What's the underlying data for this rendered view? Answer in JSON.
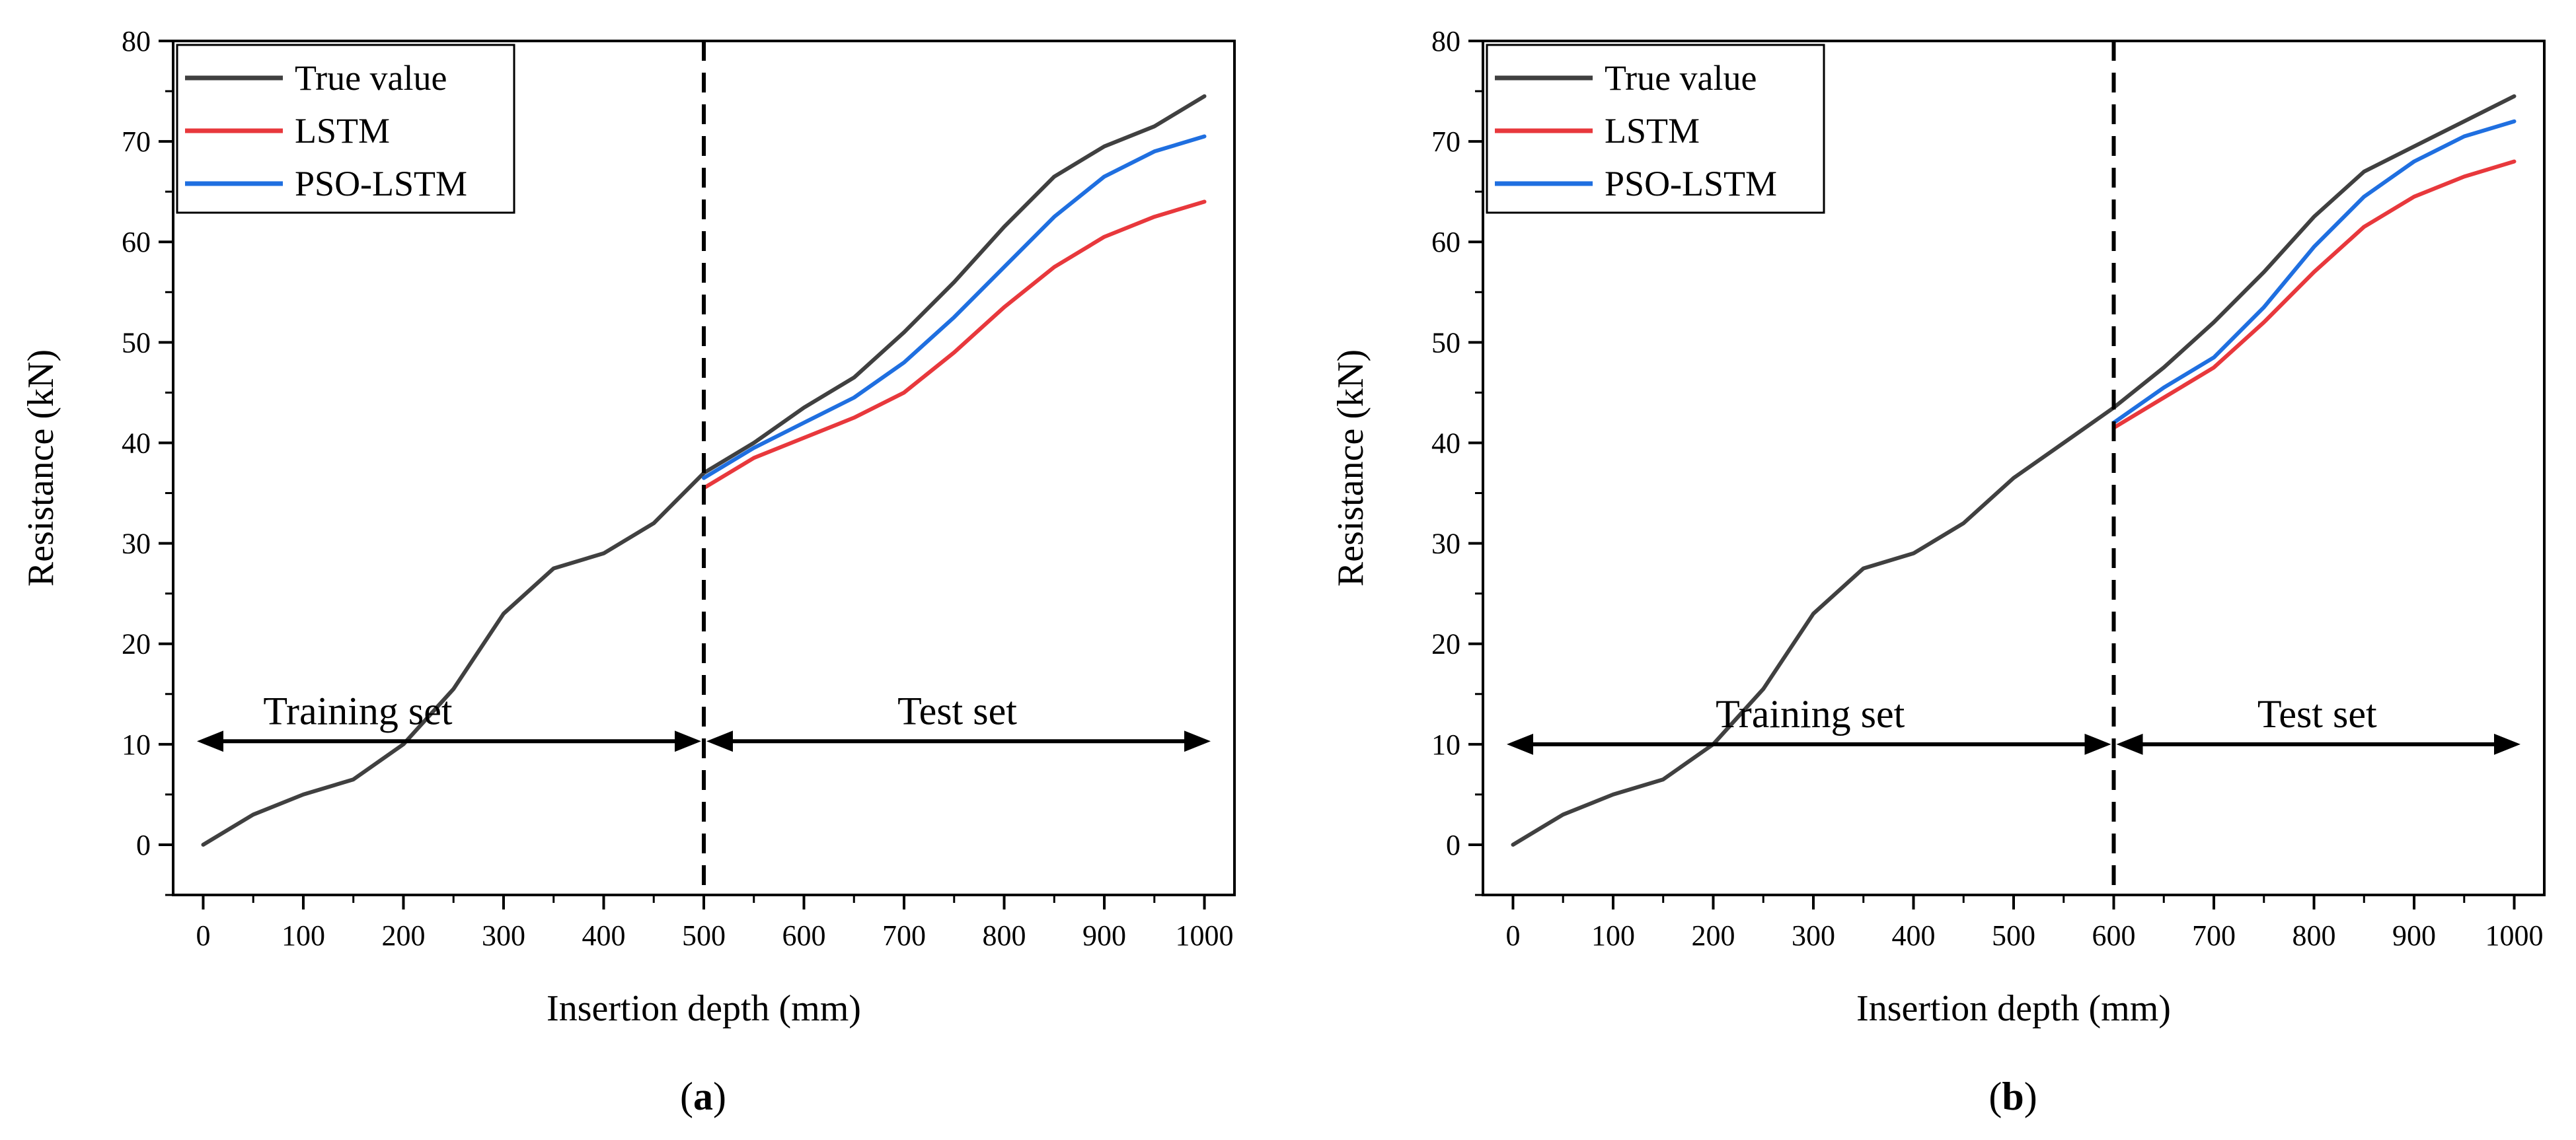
{
  "chart_data": [
    {
      "type": "line",
      "panel": "a",
      "panel_label": "a",
      "xlabel": "Insertion depth (mm)",
      "ylabel": "Resistance (kN)",
      "xlim": [
        -30,
        1030
      ],
      "ylim": [
        -5,
        80
      ],
      "xticks": [
        0,
        100,
        200,
        300,
        400,
        500,
        600,
        700,
        800,
        900,
        1000
      ],
      "yticks": [
        0,
        10,
        20,
        30,
        40,
        50,
        60,
        70,
        80
      ],
      "split": 500,
      "split_y": 10.3,
      "training_label": "Training set",
      "test_label": "Test set",
      "legend": [
        "True value",
        "LSTM",
        "PSO-LSTM"
      ],
      "legend_position": "top-left",
      "series": [
        {
          "name": "True value",
          "color": "#404040",
          "x": [
            0,
            50,
            100,
            150,
            200,
            250,
            300,
            350,
            400,
            450,
            500,
            550,
            600,
            650,
            700,
            750,
            800,
            850,
            900,
            950,
            1000
          ],
          "y": [
            0,
            3,
            5,
            6.5,
            10,
            15.5,
            23,
            27.5,
            29,
            32,
            37,
            40,
            43.5,
            46.5,
            51,
            56,
            61.5,
            66.5,
            69.5,
            71.5,
            74.5
          ]
        },
        {
          "name": "LSTM",
          "color": "#e8383c",
          "x": [
            500,
            550,
            600,
            650,
            700,
            750,
            800,
            850,
            900,
            950,
            1000
          ],
          "y": [
            35.5,
            38.5,
            40.5,
            42.5,
            45,
            49,
            53.5,
            57.5,
            60.5,
            62.5,
            64
          ]
        },
        {
          "name": "PSO-LSTM",
          "color": "#1f6fe0",
          "x": [
            500,
            550,
            600,
            650,
            700,
            750,
            800,
            850,
            900,
            950,
            1000
          ],
          "y": [
            36.5,
            39.5,
            42,
            44.5,
            48,
            52.5,
            57.5,
            62.5,
            66.5,
            69,
            70.5
          ]
        }
      ]
    },
    {
      "type": "line",
      "panel": "b",
      "panel_label": "b",
      "xlabel": "Insertion depth (mm)",
      "ylabel": "Resistance (kN)",
      "xlim": [
        -30,
        1030
      ],
      "ylim": [
        -5,
        80
      ],
      "xticks": [
        0,
        100,
        200,
        300,
        400,
        500,
        600,
        700,
        800,
        900,
        1000
      ],
      "yticks": [
        0,
        10,
        20,
        30,
        40,
        50,
        60,
        70,
        80
      ],
      "split": 600,
      "split_y": 10.0,
      "training_label": "Training set",
      "test_label": "Test set",
      "legend": [
        "True value",
        "LSTM",
        "PSO-LSTM"
      ],
      "legend_position": "top-left",
      "series": [
        {
          "name": "True value",
          "color": "#404040",
          "x": [
            0,
            50,
            100,
            150,
            200,
            250,
            300,
            350,
            400,
            450,
            500,
            550,
            600,
            650,
            700,
            750,
            800,
            850,
            900,
            950,
            1000
          ],
          "y": [
            0,
            3,
            5,
            6.5,
            10,
            15.5,
            23,
            27.5,
            29,
            32,
            36.5,
            40,
            43.5,
            47.5,
            52,
            57,
            62.5,
            67,
            69.5,
            72,
            74.5
          ]
        },
        {
          "name": "LSTM",
          "color": "#e8383c",
          "x": [
            600,
            650,
            700,
            750,
            800,
            850,
            900,
            950,
            1000
          ],
          "y": [
            41.5,
            44.5,
            47.5,
            52,
            57,
            61.5,
            64.5,
            66.5,
            68
          ]
        },
        {
          "name": "PSO-LSTM",
          "color": "#1f6fe0",
          "x": [
            600,
            650,
            700,
            750,
            800,
            850,
            900,
            950,
            1000
          ],
          "y": [
            42,
            45.5,
            48.5,
            53.5,
            59.5,
            64.5,
            68,
            70.5,
            72
          ]
        }
      ]
    }
  ]
}
